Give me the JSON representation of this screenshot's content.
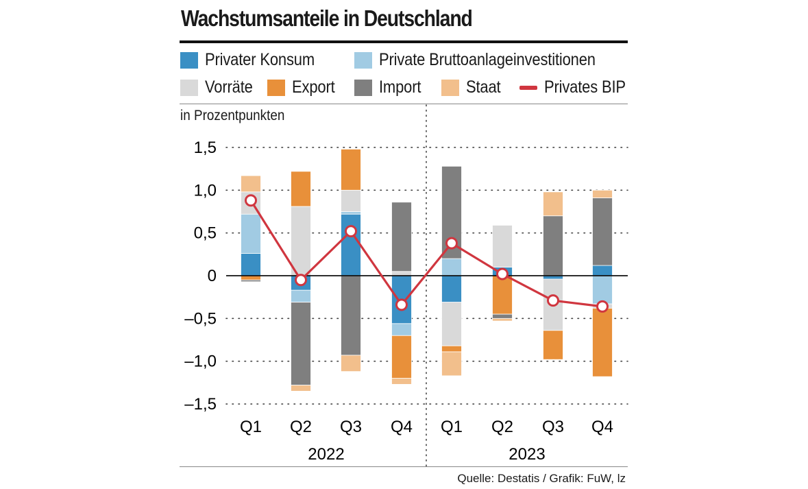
{
  "header": {
    "title": "Wachstumsanteile in Deutschland"
  },
  "legend": {
    "items": [
      {
        "label": "Privater Konsum",
        "color": "#3a8fc4",
        "kind": "box"
      },
      {
        "label": "Private Bruttoanlageinvestitionen",
        "color": "#a1cbe3",
        "kind": "box"
      },
      {
        "label": "Vorräte",
        "color": "#d9d9d9",
        "kind": "box"
      },
      {
        "label": "Export",
        "color": "#e8903a",
        "kind": "box"
      },
      {
        "label": "Import",
        "color": "#7f7f7f",
        "kind": "box"
      },
      {
        "label": "Staat",
        "color": "#f2bf8c",
        "kind": "box"
      },
      {
        "label": "Privates BIP",
        "color": "#d0363f",
        "kind": "line"
      }
    ]
  },
  "unit_label": "in Prozentpunkten",
  "source": "Quelle: Destatis / Grafik: FuW, lz",
  "chart_data": {
    "type": "bar",
    "stacked": true,
    "title": "Wachstumsanteile in Deutschland",
    "ylabel": "in Prozentpunkten",
    "ylim": [
      -1.5,
      1.5
    ],
    "yticks": [
      1.5,
      1.0,
      0.5,
      0,
      -0.5,
      -1.0,
      -1.5
    ],
    "ytick_labels": [
      "1,5",
      "1,0",
      "0,5",
      "0",
      "–0,5",
      "–1,0",
      "–1,5"
    ],
    "categories": [
      "Q1",
      "Q2",
      "Q3",
      "Q4",
      "Q1",
      "Q2",
      "Q3",
      "Q4"
    ],
    "groups": [
      {
        "label": "2022",
        "from": 0,
        "to": 3
      },
      {
        "label": "2023",
        "from": 4,
        "to": 7
      }
    ],
    "series": [
      {
        "name": "Privater Konsum",
        "color": "#3a8fc4",
        "values": [
          0.26,
          -0.17,
          0.72,
          -0.56,
          -0.31,
          0.1,
          -0.04,
          0.12
        ]
      },
      {
        "name": "Private Bruttoanlageinvestitionen",
        "color": "#a1cbe3",
        "values": [
          0.46,
          -0.14,
          0.03,
          -0.14,
          0.2,
          0.0,
          0.0,
          -0.33
        ]
      },
      {
        "name": "Vorräte",
        "color": "#d9d9d9",
        "values": [
          0.26,
          0.81,
          0.25,
          0.05,
          -0.51,
          0.49,
          -0.6,
          -0.05
        ]
      },
      {
        "name": "Export",
        "color": "#e8903a",
        "values": [
          -0.05,
          0.41,
          0.48,
          -0.5,
          -0.07,
          -0.45,
          -0.34,
          -0.8
        ]
      },
      {
        "name": "Import",
        "color": "#7f7f7f",
        "values": [
          -0.02,
          -0.97,
          -0.93,
          0.81,
          1.08,
          -0.05,
          0.7,
          0.79
        ]
      },
      {
        "name": "Staat",
        "color": "#f2bf8c",
        "values": [
          0.19,
          -0.07,
          -0.19,
          -0.07,
          -0.28,
          -0.03,
          0.28,
          0.09
        ]
      }
    ],
    "line": {
      "name": "Privates BIP",
      "color": "#d0363f",
      "values": [
        0.88,
        -0.05,
        0.52,
        -0.34,
        0.38,
        0.02,
        -0.29,
        -0.36
      ]
    }
  }
}
